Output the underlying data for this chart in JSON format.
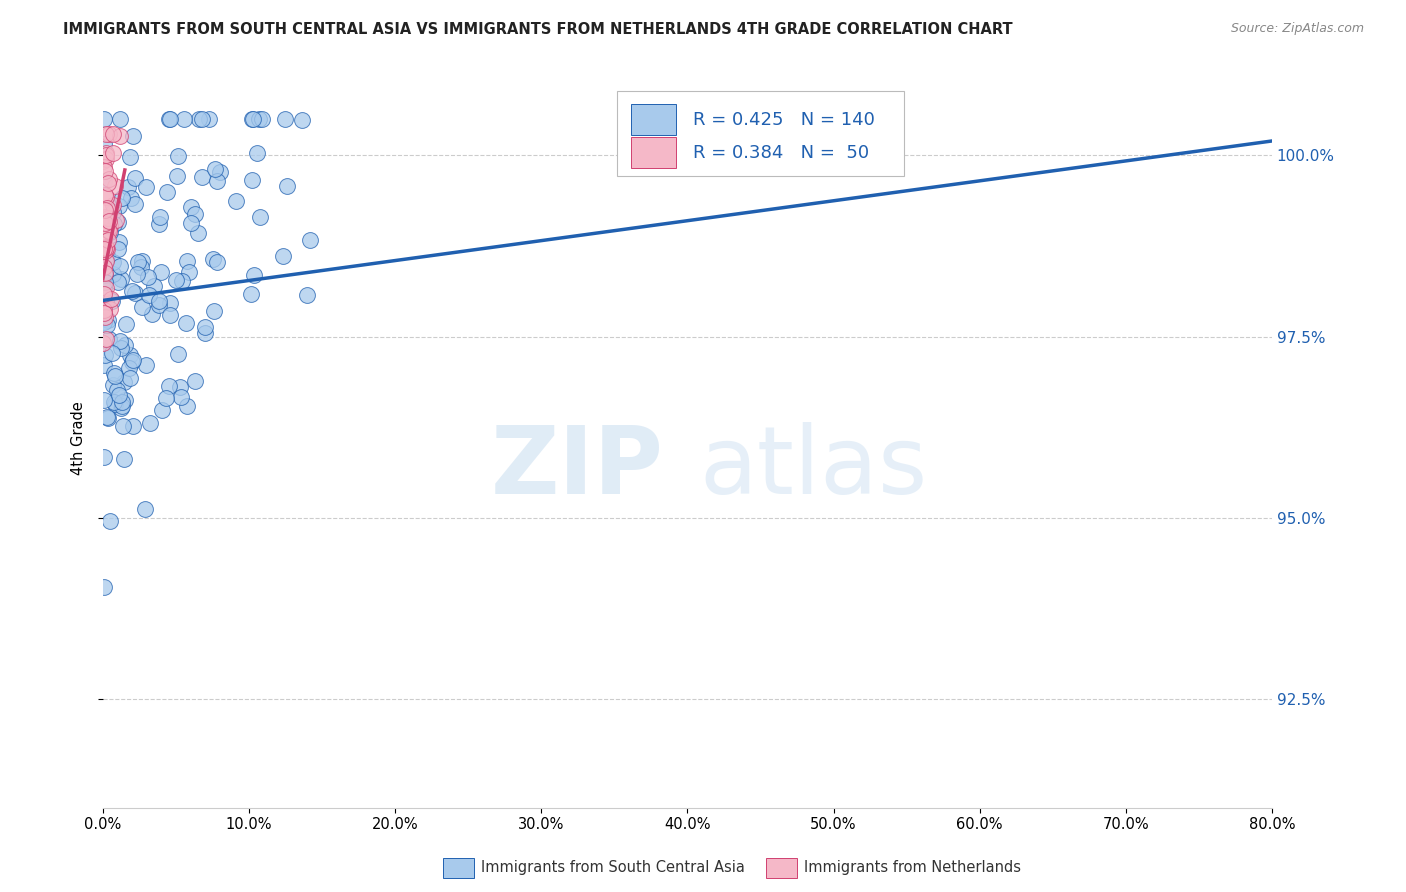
{
  "title": "IMMIGRANTS FROM SOUTH CENTRAL ASIA VS IMMIGRANTS FROM NETHERLANDS 4TH GRADE CORRELATION CHART",
  "source": "Source: ZipAtlas.com",
  "ylabel": "4th Grade",
  "y_ticks": [
    92.5,
    95.0,
    97.5,
    100.0
  ],
  "y_tick_labels": [
    "92.5%",
    "95.0%",
    "97.5%",
    "100.0%"
  ],
  "x_min": 0.0,
  "x_max": 80.0,
  "y_min": 91.0,
  "y_max": 101.2,
  "blue_R": 0.425,
  "blue_N": 140,
  "pink_R": 0.384,
  "pink_N": 50,
  "blue_color": "#a8caec",
  "pink_color": "#f5b8c8",
  "line_blue": "#2060b0",
  "line_pink": "#d04070",
  "legend_blue": "Immigrants from South Central Asia",
  "legend_pink": "Immigrants from Netherlands",
  "watermark_zip": "ZIP",
  "watermark_atlas": "atlas",
  "blue_line_x0": 0.0,
  "blue_line_y0": 98.0,
  "blue_line_x1": 80.0,
  "blue_line_y1": 100.2,
  "pink_line_x0": 0.0,
  "pink_line_y0": 98.3,
  "pink_line_x1": 1.5,
  "pink_line_y1": 99.8
}
